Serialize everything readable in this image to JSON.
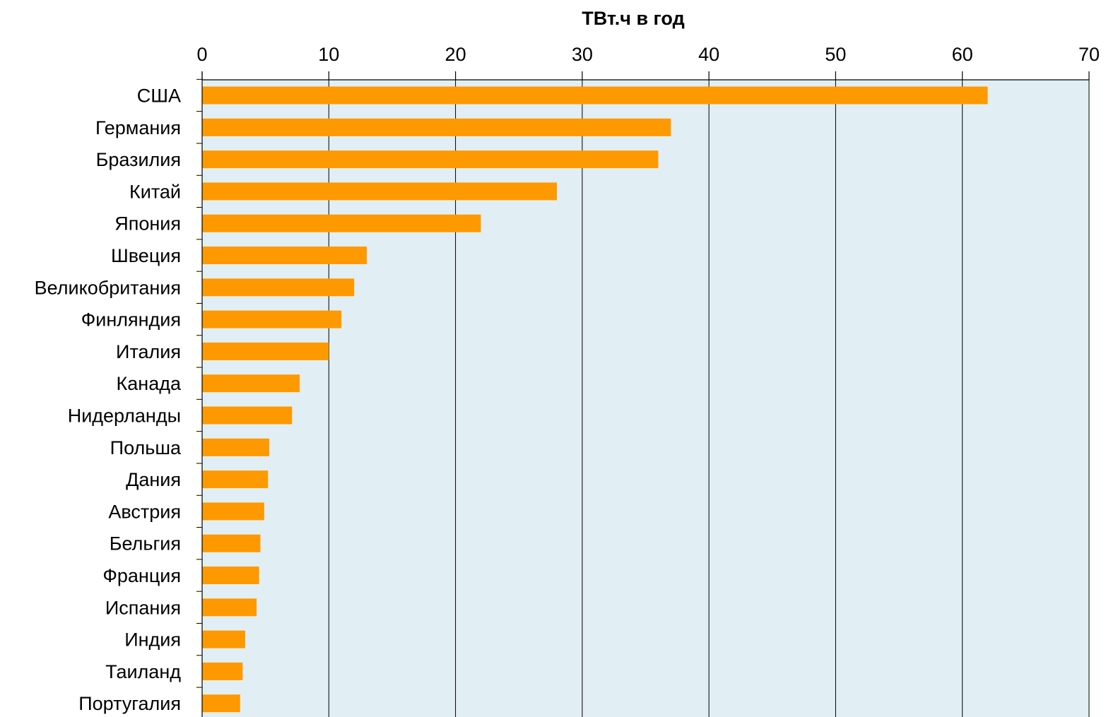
{
  "chart_data": {
    "type": "bar",
    "orientation": "horizontal",
    "xlabel": "ТВт.ч в год",
    "ylabel": "",
    "xlim": [
      0,
      70
    ],
    "ticks": [
      "0",
      "10",
      "20",
      "30",
      "40",
      "50",
      "60",
      "70"
    ],
    "tick_values": [
      0,
      10,
      20,
      30,
      40,
      50,
      60,
      70
    ],
    "x_axis_position": "top",
    "grid": true,
    "categories": [
      "США",
      "Германия",
      "Бразилия",
      "Китай",
      "Япония",
      "Швеция",
      "Великобритания",
      "Финляндия",
      "Италия",
      "Канада",
      "Нидерланды",
      "Польша",
      "Дания",
      "Австрия",
      "Бельгия",
      "Франция",
      "Испания",
      "Индия",
      "Таиланд",
      "Португалия"
    ],
    "values": [
      62,
      37,
      36,
      28,
      22,
      13,
      12,
      11,
      10,
      7.7,
      7.1,
      5.3,
      5.2,
      4.9,
      4.6,
      4.5,
      4.3,
      3.4,
      3.2,
      3.0
    ],
    "colors": {
      "bar": "#FF9900",
      "plot_background": "#E1EFF4",
      "gridline": "#000000"
    }
  }
}
